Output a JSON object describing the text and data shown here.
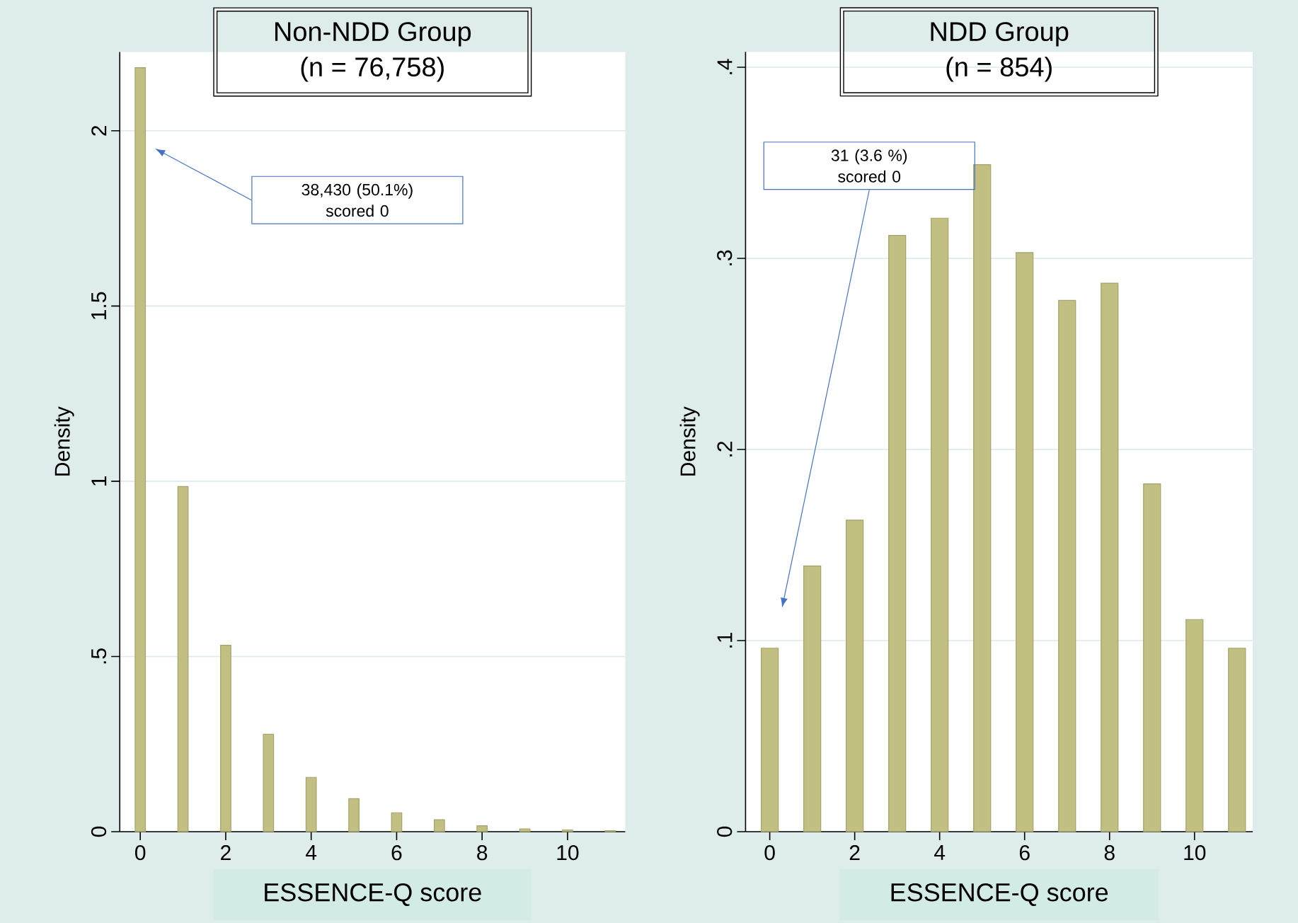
{
  "chart_data": [
    {
      "type": "bar",
      "title": "Non-NDD Group",
      "subtitle": "(n = 76,758)",
      "xlabel": "ESSENCE-Q score",
      "ylabel": "Density",
      "x": [
        0,
        1,
        2,
        3,
        4,
        5,
        6,
        7,
        8,
        9,
        10,
        11
      ],
      "values": [
        2.18,
        0.985,
        0.532,
        0.278,
        0.155,
        0.094,
        0.054,
        0.034,
        0.017,
        0.008,
        0.005,
        0.003
      ],
      "color": "#c2bf82",
      "xlim": [
        -0.48,
        11.35
      ],
      "ylim": [
        0,
        2.225
      ],
      "xticks": [
        0,
        2,
        4,
        6,
        8,
        10
      ],
      "yticks": [
        0,
        {
          "value": 0.5,
          "label": ".5"
        },
        1,
        1.5,
        2
      ],
      "grid": "y",
      "annotations": [
        "38,430 (50.1%) scored 0"
      ]
    },
    {
      "type": "bar",
      "title": "NDD Group",
      "subtitle": "(n = 854)",
      "xlabel": "ESSENCE-Q score",
      "ylabel": "Density",
      "x": [
        0,
        1,
        2,
        3,
        4,
        5,
        6,
        7,
        8,
        9,
        10,
        11
      ],
      "values": [
        0.096,
        0.139,
        0.163,
        0.312,
        0.321,
        0.349,
        0.303,
        0.278,
        0.287,
        0.182,
        0.111,
        0.096
      ],
      "color": "#c2bf82",
      "xlim": [
        -0.57,
        11.37
      ],
      "ylim": [
        0,
        0.408
      ],
      "xticks": [
        0,
        2,
        4,
        6,
        8,
        10
      ],
      "yticks": [
        0,
        {
          "value": 0.1,
          "label": ".1"
        },
        {
          "value": 0.2,
          "label": ".2"
        },
        {
          "value": 0.3,
          "label": ".3"
        },
        {
          "value": 0.4,
          "label": ".4"
        }
      ],
      "grid": "y",
      "annotations": [
        "31 (3.6 %) scored 0"
      ]
    }
  ]
}
